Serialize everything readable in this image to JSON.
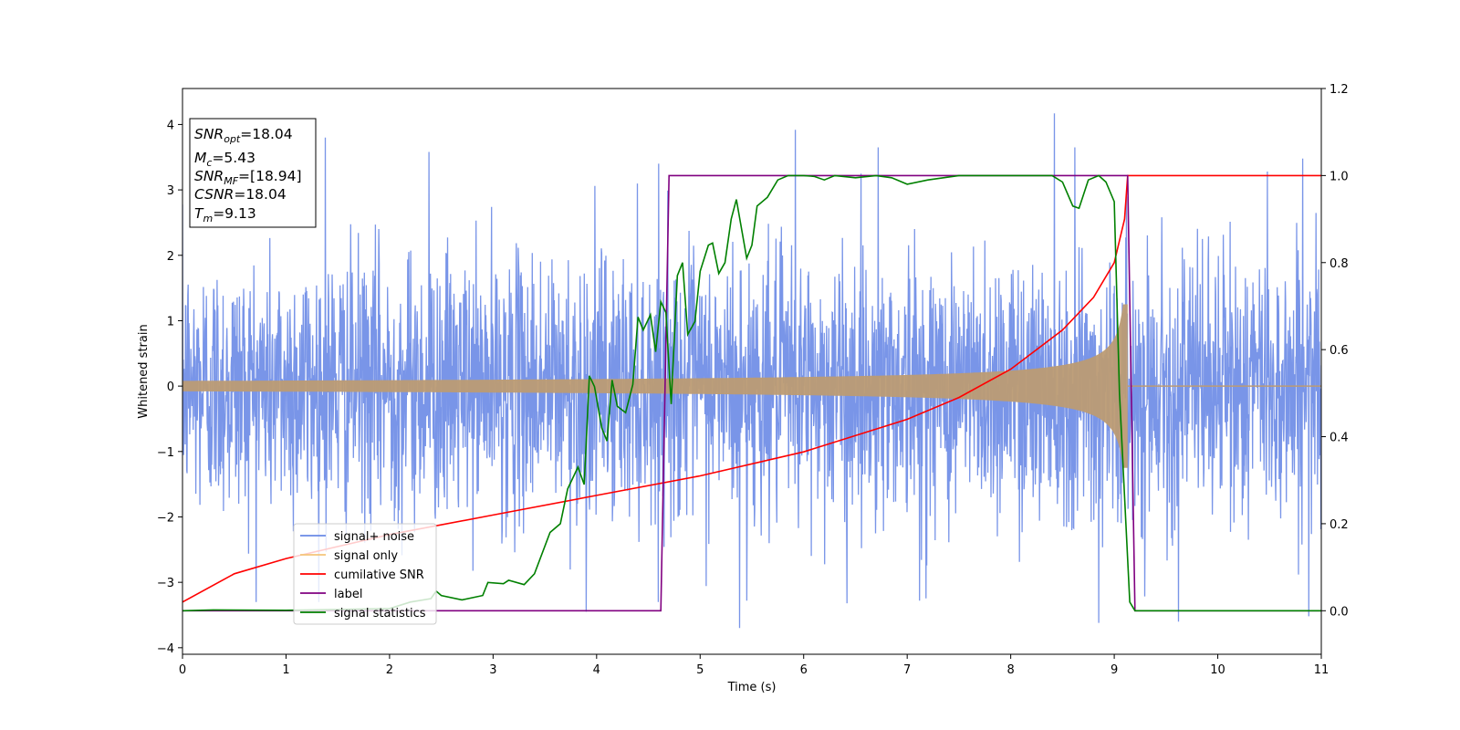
{
  "chart_data": {
    "type": "line",
    "xlabel": "Time (s)",
    "ylabel": "Whitened strain",
    "xlim": [
      0,
      11
    ],
    "ylim_left": [
      -4.1,
      4.55
    ],
    "ylim_right": [
      -0.1,
      1.2
    ],
    "x_ticks": [
      "0",
      "1",
      "2",
      "3",
      "4",
      "5",
      "6",
      "7",
      "8",
      "9",
      "10",
      "11"
    ],
    "y_ticks_left": [
      "−4",
      "−3",
      "−2",
      "−1",
      "0",
      "1",
      "2",
      "3",
      "4"
    ],
    "y_ticks_right": [
      "0.0",
      "0.2",
      "0.4",
      "0.6",
      "0.8",
      "1.0",
      "1.2"
    ],
    "grid": false,
    "legend_position": "lower-left",
    "series": [
      {
        "name": "signal+ noise",
        "axis": "left",
        "color": "#6a8ae6",
        "style": "noise",
        "noise_std": 1.0,
        "outlier_peaks": [
          {
            "x": 1.38,
            "y": 3.8
          },
          {
            "x": 2.38,
            "y": 3.58
          },
          {
            "x": 4.6,
            "y": 3.4
          },
          {
            "x": 5.92,
            "y": 3.92
          },
          {
            "x": 6.72,
            "y": 3.65
          },
          {
            "x": 8.42,
            "y": 4.17
          },
          {
            "x": 8.62,
            "y": 3.65
          },
          {
            "x": 10.48,
            "y": 3.28
          },
          {
            "x": 10.82,
            "y": 3.48
          },
          {
            "x": 3.9,
            "y": -3.45
          },
          {
            "x": 5.38,
            "y": -3.7
          },
          {
            "x": 5.45,
            "y": -3.28
          },
          {
            "x": 6.42,
            "y": -3.32
          },
          {
            "x": 7.12,
            "y": -3.28
          },
          {
            "x": 8.85,
            "y": -3.62
          },
          {
            "x": 9.62,
            "y": -3.6
          },
          {
            "x": 10.88,
            "y": -3.52
          }
        ]
      },
      {
        "name": "signal only",
        "axis": "left",
        "color": "#f5c47a",
        "style": "chirp",
        "t_merger": 9.13,
        "amplitude_start": 0.08,
        "amplitude_end": 1.25
      },
      {
        "name": "cumilative SNR",
        "axis": "right",
        "color": "#ff0000",
        "points": [
          [
            0,
            0.02
          ],
          [
            0.5,
            0.085
          ],
          [
            1,
            0.12
          ],
          [
            2,
            0.175
          ],
          [
            3,
            0.22
          ],
          [
            4,
            0.265
          ],
          [
            5,
            0.31
          ],
          [
            6,
            0.365
          ],
          [
            7,
            0.44
          ],
          [
            7.5,
            0.49
          ],
          [
            8,
            0.555
          ],
          [
            8.5,
            0.645
          ],
          [
            8.8,
            0.72
          ],
          [
            9.0,
            0.8
          ],
          [
            9.1,
            0.9
          ],
          [
            9.13,
            1.0
          ],
          [
            11,
            1.0
          ]
        ]
      },
      {
        "name": "label",
        "axis": "right",
        "color": "#800080",
        "points": [
          [
            0,
            0.0
          ],
          [
            4.62,
            0.0
          ],
          [
            4.7,
            1.0
          ],
          [
            9.13,
            1.0
          ],
          [
            9.2,
            0.0
          ],
          [
            11,
            0.0
          ]
        ]
      },
      {
        "name": "signal statistics",
        "axis": "right",
        "color": "#008000",
        "points": [
          [
            0,
            0.0
          ],
          [
            0.3,
            0.002
          ],
          [
            1.0,
            0.001
          ],
          [
            1.5,
            0.003
          ],
          [
            2.0,
            0.005
          ],
          [
            2.2,
            0.02
          ],
          [
            2.4,
            0.028
          ],
          [
            2.45,
            0.045
          ],
          [
            2.5,
            0.035
          ],
          [
            2.7,
            0.025
          ],
          [
            2.9,
            0.035
          ],
          [
            2.95,
            0.065
          ],
          [
            3.1,
            0.062
          ],
          [
            3.15,
            0.07
          ],
          [
            3.3,
            0.06
          ],
          [
            3.4,
            0.085
          ],
          [
            3.55,
            0.18
          ],
          [
            3.65,
            0.2
          ],
          [
            3.72,
            0.28
          ],
          [
            3.82,
            0.33
          ],
          [
            3.88,
            0.29
          ],
          [
            3.93,
            0.54
          ],
          [
            3.98,
            0.515
          ],
          [
            4.05,
            0.42
          ],
          [
            4.1,
            0.39
          ],
          [
            4.15,
            0.53
          ],
          [
            4.2,
            0.47
          ],
          [
            4.28,
            0.455
          ],
          [
            4.35,
            0.52
          ],
          [
            4.4,
            0.675
          ],
          [
            4.45,
            0.645
          ],
          [
            4.52,
            0.68
          ],
          [
            4.57,
            0.595
          ],
          [
            4.62,
            0.71
          ],
          [
            4.67,
            0.685
          ],
          [
            4.72,
            0.475
          ],
          [
            4.78,
            0.77
          ],
          [
            4.83,
            0.8
          ],
          [
            4.88,
            0.635
          ],
          [
            4.95,
            0.665
          ],
          [
            5.0,
            0.78
          ],
          [
            5.08,
            0.84
          ],
          [
            5.12,
            0.845
          ],
          [
            5.18,
            0.775
          ],
          [
            5.24,
            0.8
          ],
          [
            5.3,
            0.9
          ],
          [
            5.35,
            0.945
          ],
          [
            5.45,
            0.81
          ],
          [
            5.5,
            0.84
          ],
          [
            5.55,
            0.93
          ],
          [
            5.65,
            0.95
          ],
          [
            5.75,
            0.99
          ],
          [
            5.85,
            1.0
          ],
          [
            6.0,
            1.0
          ],
          [
            6.1,
            0.998
          ],
          [
            6.2,
            0.99
          ],
          [
            6.3,
            1.0
          ],
          [
            6.5,
            0.995
          ],
          [
            6.7,
            1.0
          ],
          [
            6.85,
            0.995
          ],
          [
            7.0,
            0.98
          ],
          [
            7.2,
            0.99
          ],
          [
            7.5,
            1.0
          ],
          [
            8.0,
            1.0
          ],
          [
            8.4,
            1.0
          ],
          [
            8.5,
            0.985
          ],
          [
            8.6,
            0.93
          ],
          [
            8.66,
            0.925
          ],
          [
            8.75,
            0.99
          ],
          [
            8.85,
            1.0
          ],
          [
            8.92,
            0.985
          ],
          [
            9.0,
            0.94
          ],
          [
            9.05,
            0.5
          ],
          [
            9.15,
            0.02
          ],
          [
            9.2,
            0.0
          ],
          [
            11,
            0.0
          ]
        ]
      }
    ],
    "annotation": {
      "lines": [
        {
          "base": "SNR",
          "sub": "opt",
          "value": "=18.04"
        },
        {
          "base": "M",
          "sub": "c",
          "value": "=5.43"
        },
        {
          "base": "SNR",
          "sub": "MF",
          "value": "=[18.94]"
        },
        {
          "base": "CSNR",
          "sub": "",
          "value": "=18.04"
        },
        {
          "base": "T",
          "sub": "m",
          "value": "=9.13"
        }
      ]
    }
  }
}
